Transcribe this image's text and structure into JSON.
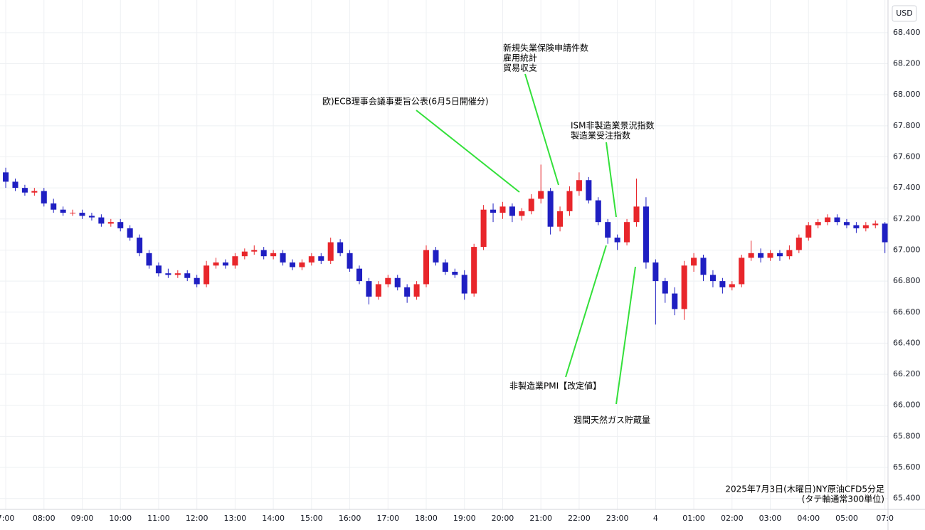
{
  "chart_data": {
    "type": "candlestick",
    "currency": "USD",
    "grid": true,
    "up_color": "#e8262b",
    "down_color": "#1f1fc2",
    "annotation_color": "#33e03a",
    "xlim": [
      -0.15,
      23.08
    ],
    "ylim": [
      65.33,
      68.61
    ],
    "xticks": [
      {
        "value": 0,
        "label": "7:00"
      },
      {
        "value": 1,
        "label": "08:00"
      },
      {
        "value": 2,
        "label": "09:00"
      },
      {
        "value": 3,
        "label": "10:00"
      },
      {
        "value": 4,
        "label": "11:00"
      },
      {
        "value": 5,
        "label": "12:00"
      },
      {
        "value": 6,
        "label": "13:00"
      },
      {
        "value": 7,
        "label": "14:00"
      },
      {
        "value": 8,
        "label": "15:00"
      },
      {
        "value": 9,
        "label": "16:00"
      },
      {
        "value": 10,
        "label": "17:00"
      },
      {
        "value": 11,
        "label": "18:00"
      },
      {
        "value": 12,
        "label": "19:00"
      },
      {
        "value": 13,
        "label": "20:00"
      },
      {
        "value": 14,
        "label": "21:00"
      },
      {
        "value": 15,
        "label": "22:00"
      },
      {
        "value": 16,
        "label": "23:00"
      },
      {
        "value": 17,
        "label": "4"
      },
      {
        "value": 18,
        "label": "01:00"
      },
      {
        "value": 19,
        "label": "02:00"
      },
      {
        "value": 20,
        "label": "03:00"
      },
      {
        "value": 21,
        "label": "04:00"
      },
      {
        "value": 22,
        "label": "05:00"
      },
      {
        "value": 23,
        "label": "07:0"
      }
    ],
    "yticks": [
      {
        "value": 65.4,
        "label": "65.400"
      },
      {
        "value": 65.6,
        "label": "65.600"
      },
      {
        "value": 65.8,
        "label": "65.800"
      },
      {
        "value": 66.0,
        "label": "66.000"
      },
      {
        "value": 66.2,
        "label": "66.200"
      },
      {
        "value": 66.4,
        "label": "66.400"
      },
      {
        "value": 66.6,
        "label": "66.600"
      },
      {
        "value": 66.8,
        "label": "66.800"
      },
      {
        "value": 67.0,
        "label": "67.000"
      },
      {
        "value": 67.2,
        "label": "67.200"
      },
      {
        "value": 67.4,
        "label": "67.400"
      },
      {
        "value": 67.6,
        "label": "67.600"
      },
      {
        "value": 67.8,
        "label": "67.800"
      },
      {
        "value": 68.0,
        "label": "68.000"
      },
      {
        "value": 68.2,
        "label": "68.200"
      },
      {
        "value": 68.4,
        "label": "68.400"
      }
    ],
    "x": [
      0,
      0.25,
      0.5,
      0.75,
      1,
      1.25,
      1.5,
      1.75,
      2,
      2.25,
      2.5,
      2.75,
      3,
      3.25,
      3.5,
      3.75,
      4,
      4.25,
      4.5,
      4.75,
      5,
      5.25,
      5.5,
      5.75,
      6,
      6.25,
      6.5,
      6.75,
      7,
      7.25,
      7.5,
      7.75,
      8,
      8.25,
      8.5,
      8.75,
      9,
      9.25,
      9.5,
      9.75,
      10,
      10.25,
      10.5,
      10.75,
      11,
      11.25,
      11.5,
      11.75,
      12,
      12.25,
      12.5,
      12.75,
      13,
      13.25,
      13.5,
      13.75,
      14,
      14.25,
      14.5,
      14.75,
      15,
      15.25,
      15.5,
      15.75,
      16,
      16.25,
      16.5,
      16.75,
      17,
      17.25,
      17.5,
      17.75,
      18,
      18.25,
      18.5,
      18.75,
      19,
      19.25,
      19.5,
      19.75,
      20,
      20.25,
      20.5,
      20.75,
      21,
      21.25,
      21.5,
      21.75,
      22,
      22.25,
      22.5,
      22.75,
      23
    ],
    "open": [
      67.5,
      67.44,
      67.4,
      67.37,
      67.38,
      67.3,
      67.26,
      67.24,
      67.24,
      67.22,
      67.21,
      67.17,
      67.18,
      67.14,
      67.08,
      66.98,
      66.9,
      66.85,
      66.84,
      66.85,
      66.82,
      66.78,
      66.9,
      66.92,
      66.9,
      66.96,
      66.99,
      67.0,
      66.96,
      66.98,
      66.92,
      66.89,
      66.92,
      66.96,
      66.93,
      67.05,
      66.98,
      66.88,
      66.8,
      66.7,
      66.78,
      66.82,
      66.76,
      66.7,
      66.78,
      67.0,
      66.92,
      66.86,
      66.84,
      66.72,
      67.02,
      67.26,
      67.24,
      67.28,
      67.22,
      67.25,
      67.33,
      67.38,
      67.15,
      67.25,
      67.38,
      67.45,
      67.32,
      67.18,
      67.08,
      67.05,
      67.18,
      67.28,
      66.92,
      66.8,
      66.72,
      66.62,
      66.9,
      66.95,
      66.84,
      66.8,
      66.76,
      66.78,
      66.95,
      66.98,
      66.95,
      66.98,
      66.96,
      67.0,
      67.08,
      67.16,
      67.18,
      67.21,
      67.18,
      67.16,
      67.14,
      67.16,
      67.17
    ],
    "high": [
      67.53,
      67.46,
      67.42,
      67.4,
      67.4,
      67.33,
      67.28,
      67.26,
      67.26,
      67.24,
      67.23,
      67.2,
      67.2,
      67.16,
      67.1,
      67.0,
      66.92,
      66.88,
      66.87,
      66.87,
      66.84,
      66.93,
      66.95,
      66.94,
      66.98,
      67.01,
      67.03,
      67.02,
      67.0,
      67.0,
      66.94,
      66.94,
      66.98,
      66.98,
      67.08,
      67.07,
      67.0,
      66.9,
      66.82,
      66.8,
      66.84,
      66.84,
      66.78,
      66.8,
      67.03,
      67.02,
      66.94,
      66.88,
      66.87,
      67.04,
      67.29,
      67.3,
      67.31,
      67.3,
      67.27,
      67.36,
      67.55,
      67.4,
      67.28,
      67.41,
      67.5,
      67.47,
      67.34,
      67.2,
      67.1,
      67.2,
      67.46,
      67.34,
      66.94,
      66.82,
      66.76,
      66.93,
      66.98,
      66.97,
      66.87,
      66.82,
      66.8,
      66.97,
      67.06,
      67.01,
      67.0,
      67.0,
      67.03,
      67.1,
      67.18,
      67.2,
      67.23,
      67.23,
      67.2,
      67.18,
      67.18,
      67.19,
      67.18
    ],
    "low": [
      67.4,
      67.38,
      67.35,
      67.35,
      67.28,
      67.24,
      67.22,
      67.22,
      67.2,
      67.19,
      67.15,
      67.15,
      67.12,
      67.06,
      66.96,
      66.88,
      66.83,
      66.82,
      66.82,
      66.8,
      66.76,
      66.76,
      66.88,
      66.88,
      66.88,
      66.94,
      66.97,
      66.94,
      66.94,
      66.9,
      66.87,
      66.87,
      66.9,
      66.91,
      66.91,
      66.96,
      66.86,
      66.78,
      66.65,
      66.68,
      66.76,
      66.74,
      66.66,
      66.68,
      66.76,
      66.9,
      66.84,
      66.82,
      66.68,
      66.7,
      67.0,
      67.18,
      67.2,
      67.18,
      67.19,
      67.23,
      67.3,
      67.1,
      67.12,
      67.22,
      67.35,
      67.3,
      67.16,
      67.04,
      67.0,
      67.03,
      67.15,
      66.88,
      66.52,
      66.66,
      66.58,
      66.55,
      66.86,
      66.8,
      66.76,
      66.72,
      66.74,
      66.76,
      66.93,
      66.92,
      66.93,
      66.93,
      66.94,
      66.98,
      67.06,
      67.14,
      67.16,
      67.16,
      67.14,
      67.11,
      67.12,
      67.14,
      66.98
    ],
    "close": [
      67.44,
      67.4,
      67.37,
      67.38,
      67.3,
      67.26,
      67.24,
      67.24,
      67.22,
      67.21,
      67.17,
      67.18,
      67.14,
      67.08,
      66.98,
      66.9,
      66.85,
      66.84,
      66.85,
      66.82,
      66.78,
      66.9,
      66.92,
      66.9,
      66.96,
      66.99,
      67.0,
      66.96,
      66.98,
      66.92,
      66.89,
      66.92,
      66.96,
      66.93,
      67.05,
      66.98,
      66.88,
      66.8,
      66.7,
      66.78,
      66.82,
      66.76,
      66.7,
      66.78,
      67.0,
      66.92,
      66.86,
      66.84,
      66.72,
      67.02,
      67.26,
      67.24,
      67.28,
      67.22,
      67.25,
      67.33,
      67.38,
      67.15,
      67.25,
      67.38,
      67.45,
      67.32,
      67.18,
      67.08,
      67.05,
      67.18,
      67.28,
      66.92,
      66.8,
      66.72,
      66.62,
      66.9,
      66.95,
      66.84,
      66.8,
      66.76,
      66.78,
      66.95,
      66.98,
      66.95,
      66.98,
      66.96,
      67.0,
      67.08,
      67.16,
      67.18,
      67.21,
      67.18,
      67.16,
      67.14,
      67.16,
      67.17,
      67.05
    ],
    "annotations": [
      {
        "lines": [
          "欧)ECB理事会議事要旨公表(6月5日開催分)"
        ]
      },
      {
        "lines": [
          "新規失業保険申請件数",
          "雇用統計",
          "貿易収支"
        ]
      },
      {
        "lines": [
          "ISM非製造業景況指数",
          "製造業受注指数"
        ]
      },
      {
        "lines": [
          "非製造業PMI【改定値】"
        ]
      },
      {
        "lines": [
          "週間天然ガス貯蔵量"
        ]
      }
    ],
    "caption": [
      "2025年7月3日(木曜日)NY原油CFD5分足",
      "(タテ軸通常300単位)"
    ]
  }
}
